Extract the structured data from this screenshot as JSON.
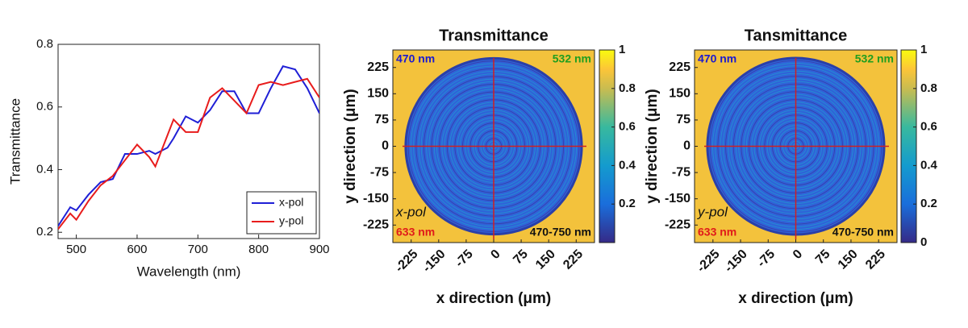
{
  "chart_data": [
    {
      "type": "line",
      "xlabel": "Wavelength (nm)",
      "ylabel": "Transmittance",
      "x": [
        470,
        490,
        500,
        520,
        540,
        560,
        580,
        600,
        620,
        630,
        650,
        660,
        680,
        700,
        720,
        740,
        760,
        780,
        800,
        820,
        840,
        860,
        880,
        900
      ],
      "series": [
        {
          "name": "x-pol",
          "color": "#1f1fd6",
          "values": [
            0.22,
            0.28,
            0.27,
            0.32,
            0.36,
            0.37,
            0.45,
            0.45,
            0.46,
            0.45,
            0.47,
            0.5,
            0.57,
            0.55,
            0.59,
            0.65,
            0.65,
            0.58,
            0.58,
            0.66,
            0.73,
            0.72,
            0.66,
            0.58
          ]
        },
        {
          "name": "y-pol",
          "color": "#e81c1c",
          "values": [
            0.21,
            0.26,
            0.24,
            0.3,
            0.35,
            0.38,
            0.43,
            0.48,
            0.44,
            0.41,
            0.51,
            0.56,
            0.52,
            0.52,
            0.63,
            0.66,
            0.62,
            0.58,
            0.67,
            0.68,
            0.67,
            0.68,
            0.69,
            0.63
          ]
        }
      ],
      "xlim": [
        470,
        900
      ],
      "xticks": [
        500,
        600,
        700,
        800,
        900
      ],
      "ylim": [
        0.18,
        0.8
      ],
      "yticks": [
        0.2,
        0.4,
        0.6,
        0.8
      ],
      "legend": "lower right"
    },
    {
      "type": "image",
      "title": "Transmittance",
      "xlabel": "x direction (μm)",
      "ylabel": "y direction (μm)",
      "xlim": [
        -275,
        275
      ],
      "ylim": [
        -275,
        275
      ],
      "xticks": [
        -225,
        -150,
        -75,
        0,
        75,
        150,
        225
      ],
      "yticks": [
        -225,
        -150,
        -75,
        0,
        75,
        150,
        225
      ],
      "clim": [
        0,
        1
      ],
      "cticks": [
        0.2,
        0.4,
        0.6,
        0.8,
        1
      ],
      "annotations": [
        {
          "text": "470 nm",
          "color": "#1a1ad0"
        },
        {
          "text": "532 nm",
          "color": "#1f9e1f"
        },
        {
          "text": "x-pol",
          "color": "#111111"
        },
        {
          "text": "633 nm",
          "color": "#e01a1a"
        },
        {
          "text": "470-750 nm",
          "color": "#111111"
        }
      ]
    },
    {
      "type": "image",
      "title": "Tansmittance",
      "xlabel": "x direction (μm)",
      "ylabel": "y direction (μm)",
      "xlim": [
        -275,
        275
      ],
      "ylim": [
        -275,
        275
      ],
      "xticks": [
        -225,
        -150,
        -75,
        0,
        75,
        150,
        225
      ],
      "yticks": [
        -225,
        -150,
        -75,
        0,
        75,
        150,
        225
      ],
      "clim": [
        0,
        1
      ],
      "cticks": [
        0,
        0.2,
        0.4,
        0.6,
        0.8,
        1
      ],
      "annotations": [
        {
          "text": "470 nm",
          "color": "#1a1ad0"
        },
        {
          "text": "532 nm",
          "color": "#1f9e1f"
        },
        {
          "text": "y-pol",
          "color": "#111111"
        },
        {
          "text": "633 nm",
          "color": "#e01a1a"
        },
        {
          "text": "470-750 nm",
          "color": "#111111"
        }
      ]
    }
  ]
}
